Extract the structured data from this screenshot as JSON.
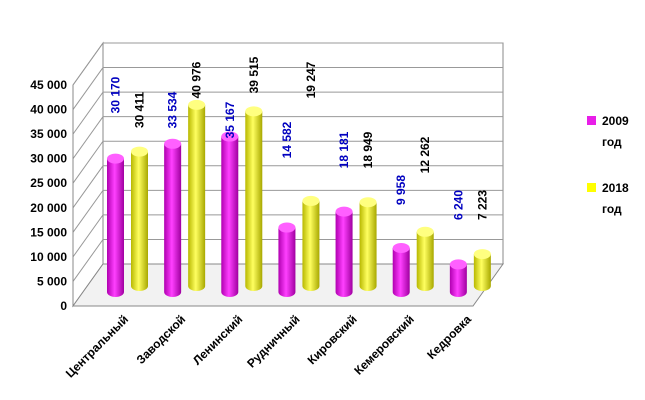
{
  "chart_data": {
    "type": "bar",
    "title": "",
    "xlabel": "",
    "ylabel": "",
    "ylim": [
      0,
      45000
    ],
    "yticks": [
      "0",
      "5 000",
      "10 000",
      "15 000",
      "20 000",
      "25 000",
      "30 000",
      "35 000",
      "40 000",
      "45 000"
    ],
    "categories": [
      "Центральный",
      "Заводской",
      "Ленинский",
      "Рудничный",
      "Кировский",
      "Кемеровский",
      "Кедровка"
    ],
    "series": [
      {
        "name": "2009 год",
        "name_line1": "2009",
        "name_line2": "год",
        "color": "#e81ee8",
        "values": [
          30170,
          33534,
          35167,
          14582,
          18181,
          9958,
          6240
        ],
        "labels": [
          "30 170",
          "33 534",
          "35 167",
          "14 582",
          "18 181",
          "9 958",
          "6 240"
        ]
      },
      {
        "name": "2018 год",
        "name_line1": "2018",
        "name_line2": "год",
        "color": "#ffff00",
        "values": [
          30411,
          40976,
          39515,
          19247,
          18949,
          12262,
          7223
        ],
        "labels": [
          "30 411",
          "40 976",
          "39 515",
          "19 247",
          "18 949",
          "12 262",
          "7 223"
        ]
      }
    ],
    "label_colors": {
      "series1": "#0000c0",
      "series2": "#000000"
    },
    "grid": true,
    "legend": "right"
  }
}
